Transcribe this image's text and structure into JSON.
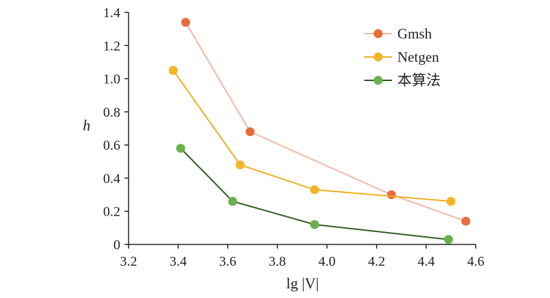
{
  "chart_data": {
    "type": "line",
    "xlabel": "lg |V|",
    "ylabel": "h",
    "xlim": [
      3.2,
      4.6
    ],
    "ylim": [
      0,
      1.4
    ],
    "xticks": [
      "3.2",
      "3.4",
      "3.6",
      "3.8",
      "4.0",
      "4.2",
      "4.4",
      "4.6"
    ],
    "yticks": [
      "0",
      "0.2",
      "0.4",
      "0.6",
      "0.8",
      "1.0",
      "1.2",
      "1.4"
    ],
    "grid": false,
    "legend_position": "top-right",
    "series": [
      {
        "name": "Gmsh",
        "line_color": "#f2b8a2",
        "marker_color": "#e86d3c",
        "x": [
          3.43,
          3.69,
          4.26,
          4.56
        ],
        "y": [
          1.34,
          0.68,
          0.3,
          0.14
        ]
      },
      {
        "name": "Netgen",
        "line_color": "#f1ad1d",
        "marker_color": "#f4b42a",
        "x": [
          3.38,
          3.65,
          3.95,
          4.5
        ],
        "y": [
          1.05,
          0.48,
          0.33,
          0.26
        ]
      },
      {
        "name": "本算法",
        "line_color": "#2e5d1e",
        "marker_color": "#6ab04c",
        "x": [
          3.41,
          3.62,
          3.95,
          4.49
        ],
        "y": [
          0.58,
          0.26,
          0.12,
          0.03
        ]
      }
    ]
  }
}
